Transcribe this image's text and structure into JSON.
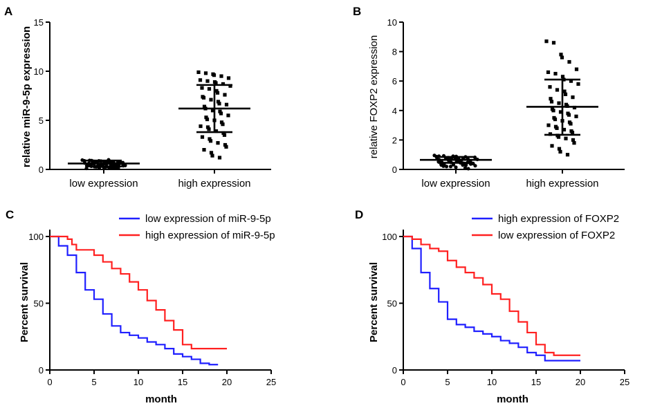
{
  "chart_data": [
    {
      "panel": "A",
      "type": "scatter",
      "ylabel": "relative miR-9-5p expression",
      "categories": [
        "low expression",
        "high expression"
      ],
      "ylim": [
        0,
        15
      ],
      "yticks": [
        0,
        5,
        10,
        15
      ],
      "series": [
        {
          "name": "low expression",
          "values": [
            0.95,
            0.9,
            0.85,
            0.8,
            0.75,
            0.7,
            0.65,
            0.6,
            0.55,
            0.5,
            0.45,
            0.4,
            0.35,
            0.3,
            0.25,
            0.2,
            0.15,
            0.1,
            0.92,
            0.87,
            0.78,
            0.72,
            0.68,
            0.62,
            0.58,
            0.52,
            0.48,
            0.42,
            0.38,
            0.32,
            0.28,
            0.22,
            0.18,
            0.12,
            0.88,
            0.82,
            0.76,
            0.66,
            0.56,
            0.46,
            0.36,
            0.26,
            0.16,
            0.98,
            0.74,
            0.64,
            0.54,
            0.44,
            0.34,
            0.24
          ],
          "mean": 0.6,
          "sd_low": 0.3,
          "sd_high": 0.9
        },
        {
          "name": "high expression",
          "values": [
            9.9,
            9.8,
            9.7,
            9.6,
            9.5,
            9.3,
            9.1,
            9.0,
            8.9,
            8.8,
            8.7,
            8.5,
            8.3,
            8.2,
            8.0,
            7.8,
            7.6,
            7.4,
            7.3,
            7.1,
            6.9,
            6.7,
            6.6,
            6.4,
            6.2,
            6.0,
            5.9,
            5.7,
            5.5,
            5.3,
            5.1,
            5.0,
            4.8,
            4.6,
            4.4,
            4.3,
            4.1,
            3.9,
            3.7,
            3.5,
            3.3,
            3.1,
            2.9,
            2.7,
            2.5,
            2.3,
            2.0,
            1.7,
            1.4,
            1.2
          ],
          "mean": 6.2,
          "sd_low": 3.8,
          "sd_high": 8.6
        }
      ]
    },
    {
      "panel": "B",
      "type": "scatter",
      "ylabel": "relative FOXP2 expression",
      "categories": [
        "low expression",
        "high expression"
      ],
      "ylim": [
        0,
        10
      ],
      "yticks": [
        0,
        2,
        4,
        6,
        8,
        10
      ],
      "series": [
        {
          "name": "low expression",
          "values": [
            0.95,
            0.92,
            0.9,
            0.88,
            0.85,
            0.82,
            0.8,
            0.78,
            0.75,
            0.72,
            0.7,
            0.68,
            0.65,
            0.62,
            0.6,
            0.58,
            0.55,
            0.52,
            0.5,
            0.48,
            0.45,
            0.42,
            0.4,
            0.38,
            0.35,
            0.32,
            0.3,
            0.28,
            0.25,
            0.22,
            0.2,
            0.15,
            0.1,
            0.05,
            0.87,
            0.77,
            0.67,
            0.57,
            0.47,
            0.37,
            0.9,
            0.8,
            0.7,
            0.6,
            0.5,
            0.4,
            0.3,
            0.2,
            0.85,
            0.75
          ],
          "mean": 0.65,
          "sd_low": 0.45,
          "sd_high": 0.85
        },
        {
          "name": "high expression",
          "values": [
            8.7,
            8.6,
            7.8,
            7.6,
            7.3,
            6.8,
            6.6,
            6.5,
            6.3,
            6.1,
            6.0,
            5.8,
            5.6,
            5.4,
            5.3,
            5.1,
            4.9,
            4.8,
            4.6,
            4.5,
            4.4,
            4.3,
            4.2,
            4.1,
            4.0,
            3.9,
            3.8,
            3.7,
            3.6,
            3.5,
            3.4,
            3.3,
            3.2,
            3.1,
            3.0,
            2.9,
            2.8,
            2.7,
            2.6,
            2.5,
            2.4,
            2.3,
            2.2,
            2.1,
            2.0,
            1.8,
            1.6,
            1.4,
            1.2,
            1.0
          ],
          "mean": 4.25,
          "sd_low": 2.35,
          "sd_high": 6.1
        }
      ]
    },
    {
      "panel": "C",
      "type": "line",
      "xlabel": "month",
      "ylabel": "Percent survival",
      "xlim": [
        0,
        25
      ],
      "ylim": [
        0,
        100
      ],
      "xticks": [
        0,
        5,
        10,
        15,
        20,
        25
      ],
      "yticks": [
        0,
        50,
        100
      ],
      "series": [
        {
          "name": "low expression of miR-9-5p",
          "color": "#1f1fff",
          "steps": [
            [
              0,
              100
            ],
            [
              1,
              93
            ],
            [
              2,
              86
            ],
            [
              3,
              73
            ],
            [
              4,
              60
            ],
            [
              5,
              53
            ],
            [
              6,
              42
            ],
            [
              7,
              33
            ],
            [
              8,
              28
            ],
            [
              9,
              26
            ],
            [
              10,
              24
            ],
            [
              11,
              21
            ],
            [
              12,
              19
            ],
            [
              13,
              16
            ],
            [
              14,
              12
            ],
            [
              15,
              10
            ],
            [
              16,
              8
            ],
            [
              17,
              5
            ],
            [
              18,
              4
            ],
            [
              19,
              4
            ]
          ]
        },
        {
          "name": "high expression of miR-9-5p",
          "color": "#ff2020",
          "steps": [
            [
              0,
              100
            ],
            [
              2,
              98
            ],
            [
              2.5,
              94
            ],
            [
              3,
              90
            ],
            [
              5,
              86
            ],
            [
              6,
              81
            ],
            [
              7,
              76
            ],
            [
              8,
              72
            ],
            [
              9,
              66
            ],
            [
              10,
              60
            ],
            [
              11,
              52
            ],
            [
              12,
              45
            ],
            [
              13,
              37
            ],
            [
              14,
              30
            ],
            [
              15,
              19
            ],
            [
              16,
              16
            ],
            [
              20,
              16
            ]
          ]
        }
      ]
    },
    {
      "panel": "D",
      "type": "line",
      "xlabel": "month",
      "ylabel": "Percent survival",
      "xlim": [
        0,
        25
      ],
      "ylim": [
        0,
        100
      ],
      "xticks": [
        0,
        5,
        10,
        15,
        20,
        25
      ],
      "yticks": [
        0,
        50,
        100
      ],
      "series": [
        {
          "name": "high expression of FOXP2",
          "color": "#1f1fff",
          "steps": [
            [
              0,
              100
            ],
            [
              1,
              91
            ],
            [
              2,
              73
            ],
            [
              3,
              61
            ],
            [
              4,
              51
            ],
            [
              5,
              38
            ],
            [
              6,
              34
            ],
            [
              7,
              32
            ],
            [
              8,
              29
            ],
            [
              9,
              27
            ],
            [
              10,
              25
            ],
            [
              11,
              22
            ],
            [
              12,
              20
            ],
            [
              13,
              17
            ],
            [
              14,
              13
            ],
            [
              15,
              11
            ],
            [
              16,
              7
            ],
            [
              20,
              7
            ]
          ]
        },
        {
          "name": "low expression of FOXP2",
          "color": "#ff2020",
          "steps": [
            [
              0,
              100
            ],
            [
              1,
              98
            ],
            [
              2,
              94
            ],
            [
              3,
              91
            ],
            [
              4,
              89
            ],
            [
              5,
              82
            ],
            [
              6,
              77
            ],
            [
              7,
              73
            ],
            [
              8,
              69
            ],
            [
              9,
              64
            ],
            [
              10,
              57
            ],
            [
              11,
              53
            ],
            [
              12,
              44
            ],
            [
              13,
              36
            ],
            [
              14,
              28
            ],
            [
              15,
              19
            ],
            [
              16,
              13
            ],
            [
              17,
              11
            ],
            [
              20,
              11
            ]
          ]
        }
      ]
    }
  ]
}
